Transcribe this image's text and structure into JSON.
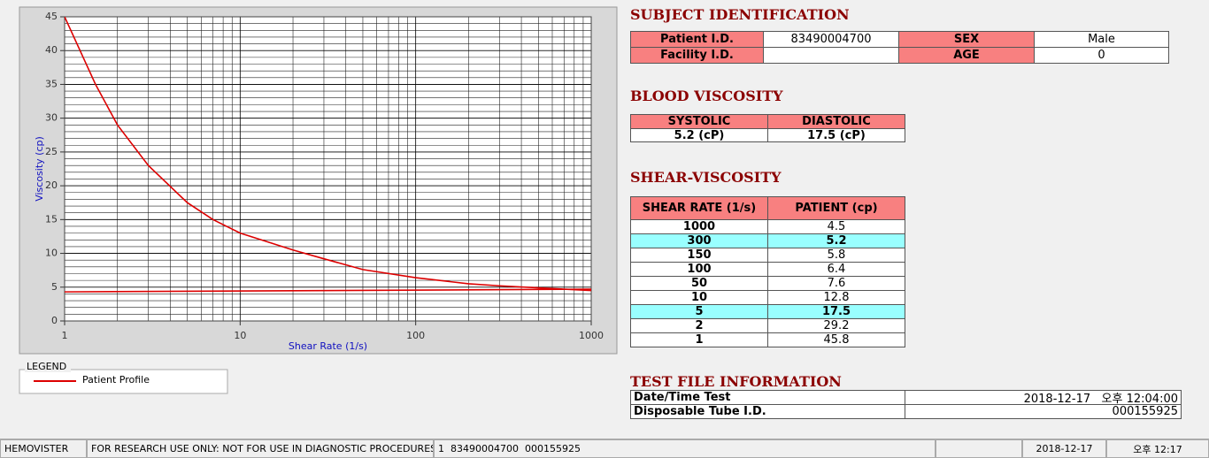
{
  "chart_data": {
    "type": "line",
    "xlabel": "Shear Rate (1/s)",
    "ylabel": "Viscosity (cp)",
    "xscale": "log",
    "xlim": [
      1,
      1000
    ],
    "xticks": [
      1,
      10,
      100,
      1000
    ],
    "ylim": [
      0,
      45
    ],
    "yticks": [
      0,
      5,
      10,
      15,
      20,
      25,
      30,
      35,
      40,
      45
    ],
    "grid": true,
    "minor_grid": true,
    "legend_title": "LEGEND",
    "series": [
      {
        "name": "Patient Profile",
        "color": "#dd0000",
        "x": [
          1,
          1.5,
          2,
          3,
          5,
          7,
          10,
          20,
          30,
          50,
          100,
          200,
          300,
          500,
          1000
        ],
        "values": [
          45,
          35,
          29,
          23,
          17.5,
          15,
          13,
          10.5,
          9.2,
          7.6,
          6.4,
          5.5,
          5.2,
          4.9,
          4.5
        ]
      },
      {
        "color": "#dd0000",
        "x": [
          1,
          1000
        ],
        "values": [
          4.3,
          4.7
        ]
      }
    ]
  },
  "subject": {
    "title": "SUBJECT IDENTIFICATION",
    "rows": [
      [
        "Patient I.D.",
        "83490004700",
        "SEX",
        "Male"
      ],
      [
        "Facility I.D.",
        null,
        "AGE",
        "0"
      ]
    ]
  },
  "blood_viscosity": {
    "title": "BLOOD VISCOSITY",
    "header": [
      "SYSTOLIC",
      "DIASTOLIC"
    ],
    "values": [
      "5.2 (cP)",
      "17.5 (cP)"
    ]
  },
  "shear_viscosity": {
    "title": "SHEAR-VISCOSITY",
    "header": [
      "SHEAR RATE (1/s)",
      "PATIENT (cp)"
    ],
    "rows": [
      [
        1000,
        4.5
      ],
      [
        300,
        5.2
      ],
      [
        150,
        5.8
      ],
      [
        100,
        6.4
      ],
      [
        50,
        7.6
      ],
      [
        10,
        12.8
      ],
      [
        5,
        17.5
      ],
      [
        2,
        29.2
      ],
      [
        1,
        45.8
      ]
    ],
    "highlight_rows": [
      1,
      6
    ]
  },
  "test_file": {
    "title": "TEST FILE INFORMATION",
    "rows": [
      [
        "Date/Time Test",
        "2018-12-17   오후 12:04:00"
      ],
      [
        "Disposable Tube I.D.",
        "000155925"
      ]
    ]
  },
  "status_bar": [
    "HEMOVISTER",
    "FOR RESEARCH USE ONLY: NOT FOR USE IN DIAGNOSTIC PROCEDURES",
    "1  83490004700  000155925",
    null,
    "2018-12-17",
    "오후 12:17"
  ]
}
